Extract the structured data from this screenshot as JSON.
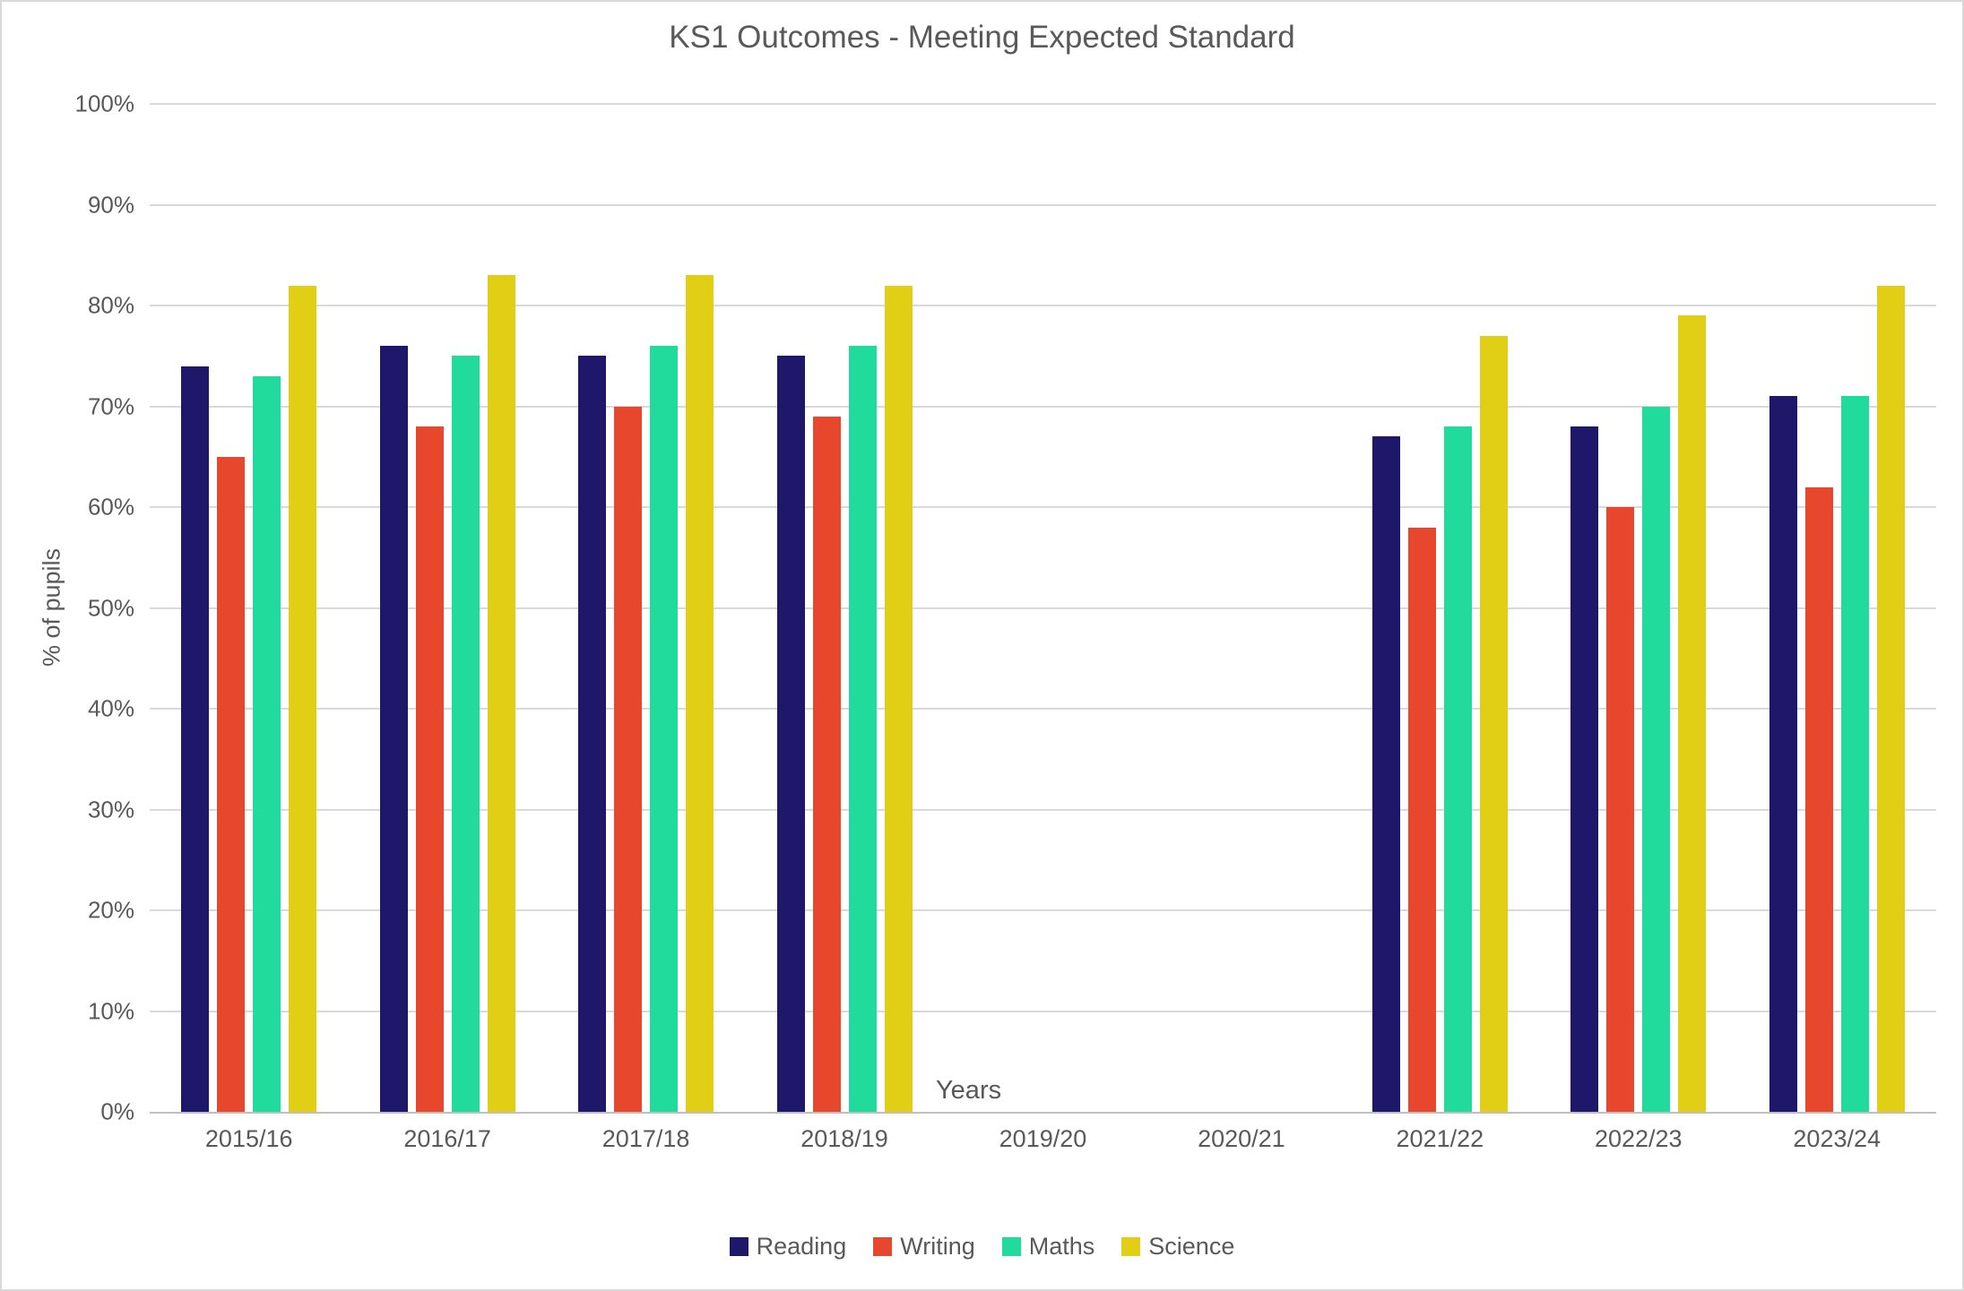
{
  "chart_data": {
    "type": "bar",
    "title": "KS1 Outcomes - Meeting Expected Standard",
    "xlabel": "Years",
    "ylabel": "% of pupils",
    "categories": [
      "2015/16",
      "2016/17",
      "2017/18",
      "2018/19",
      "2019/20",
      "2020/21",
      "2021/22",
      "2022/23",
      "2023/24"
    ],
    "series": [
      {
        "name": "Reading",
        "color": "#1e176a",
        "values": [
          74,
          76,
          75,
          75,
          null,
          null,
          67,
          68,
          71
        ]
      },
      {
        "name": "Writing",
        "color": "#e7472c",
        "values": [
          65,
          68,
          70,
          69,
          null,
          null,
          58,
          60,
          62
        ]
      },
      {
        "name": "Maths",
        "color": "#20db9c",
        "values": [
          73,
          75,
          76,
          76,
          null,
          null,
          68,
          70,
          71
        ]
      },
      {
        "name": "Science",
        "color": "#e1cf15",
        "values": [
          82,
          83,
          83,
          82,
          null,
          null,
          77,
          79,
          82
        ]
      }
    ],
    "ylim": [
      0,
      100
    ],
    "ytick_step": 10,
    "ytick_suffix": "%",
    "grid": true,
    "legend_position": "bottom"
  },
  "colors": {
    "text": "#595959",
    "gridline": "#d9d9d9",
    "axis_line": "#bfbfbf",
    "background": "#ffffff",
    "border": "#d9d9d9"
  }
}
